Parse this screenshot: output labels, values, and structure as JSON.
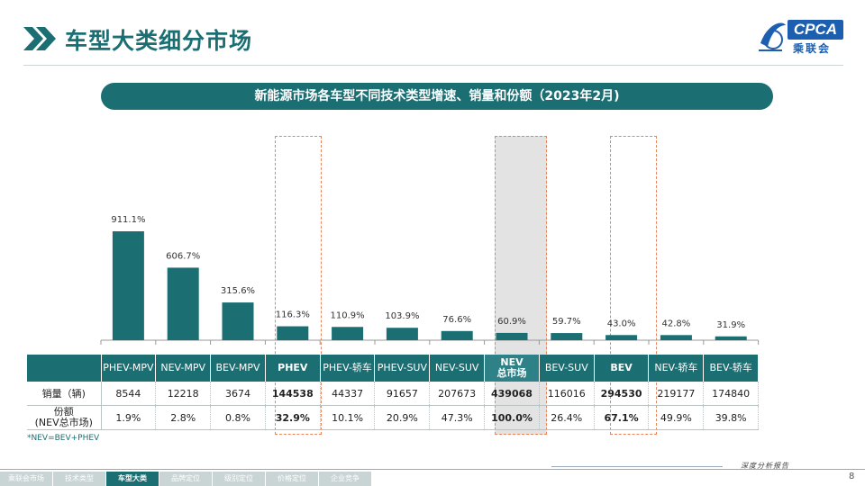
{
  "page": {
    "title": "车型大类细分市场",
    "banner": "新能源市场各车型不同技术类型增速、销量和份额（2023年2月)",
    "footnote": "*NEV=BEV+PHEV",
    "page_number": "8",
    "slogan": "深度分析报告"
  },
  "logo": {
    "top": "CPCA",
    "bottom": "乘联会"
  },
  "colors": {
    "accent": "#1b6e72",
    "highlight": "#e9855a",
    "nev_shade": "#e3e3e3"
  },
  "chart_data": {
    "type": "bar",
    "categories": [
      "PHEV-MPV",
      "NEV-MPV",
      "BEV-MPV",
      "PHEV",
      "PHEV-轿车",
      "PHEV-SUV",
      "NEV-SUV",
      "NEV总市场",
      "BEV-SUV",
      "BEV",
      "NEV-轿车",
      "BEV-轿车"
    ],
    "series": [
      {
        "values": [
          911.1,
          606.7,
          315.6,
          116.3,
          110.9,
          103.9,
          76.6,
          60.9,
          59.7,
          43.0,
          42.8,
          31.9
        ]
      }
    ],
    "value_labels": [
      "911.1%",
      "606.7%",
      "315.6%",
      "116.3%",
      "110.9%",
      "103.9%",
      "76.6%",
      "60.9%",
      "59.7%",
      "43.0%",
      "42.8%",
      "31.9%"
    ],
    "ylim": [
      0,
      1000
    ],
    "grid": false,
    "legend": "none"
  },
  "table": {
    "headers": [
      "PHEV-MPV",
      "NEV-MPV",
      "BEV-MPV",
      "PHEV",
      "PHEV-轿车",
      "PHEV-SUV",
      "NEV-SUV",
      "NEV\n总市场",
      "BEV-SUV",
      "BEV",
      "NEV-轿车",
      "BEV-轿车"
    ],
    "rows": [
      {
        "label": "销量（辆)",
        "values": [
          "8544",
          "12218",
          "3674",
          "144538",
          "44337",
          "91657",
          "207673",
          "439068",
          "116016",
          "294530",
          "219177",
          "174840"
        ]
      },
      {
        "label": "份额\n(NEV总市场)",
        "values": [
          "1.9%",
          "2.8%",
          "0.8%",
          "32.9%",
          "10.1%",
          "20.9%",
          "47.3%",
          "100.0%",
          "26.4%",
          "67.1%",
          "49.9%",
          "39.8%"
        ]
      }
    ],
    "bold_columns": [
      3,
      7,
      9
    ]
  },
  "footer": {
    "tabs": [
      "乘联会市场",
      "技术类型",
      "车型大类",
      "品牌定位",
      "级别定位",
      "价格定位",
      "企业竞争"
    ],
    "active_index": 2
  }
}
